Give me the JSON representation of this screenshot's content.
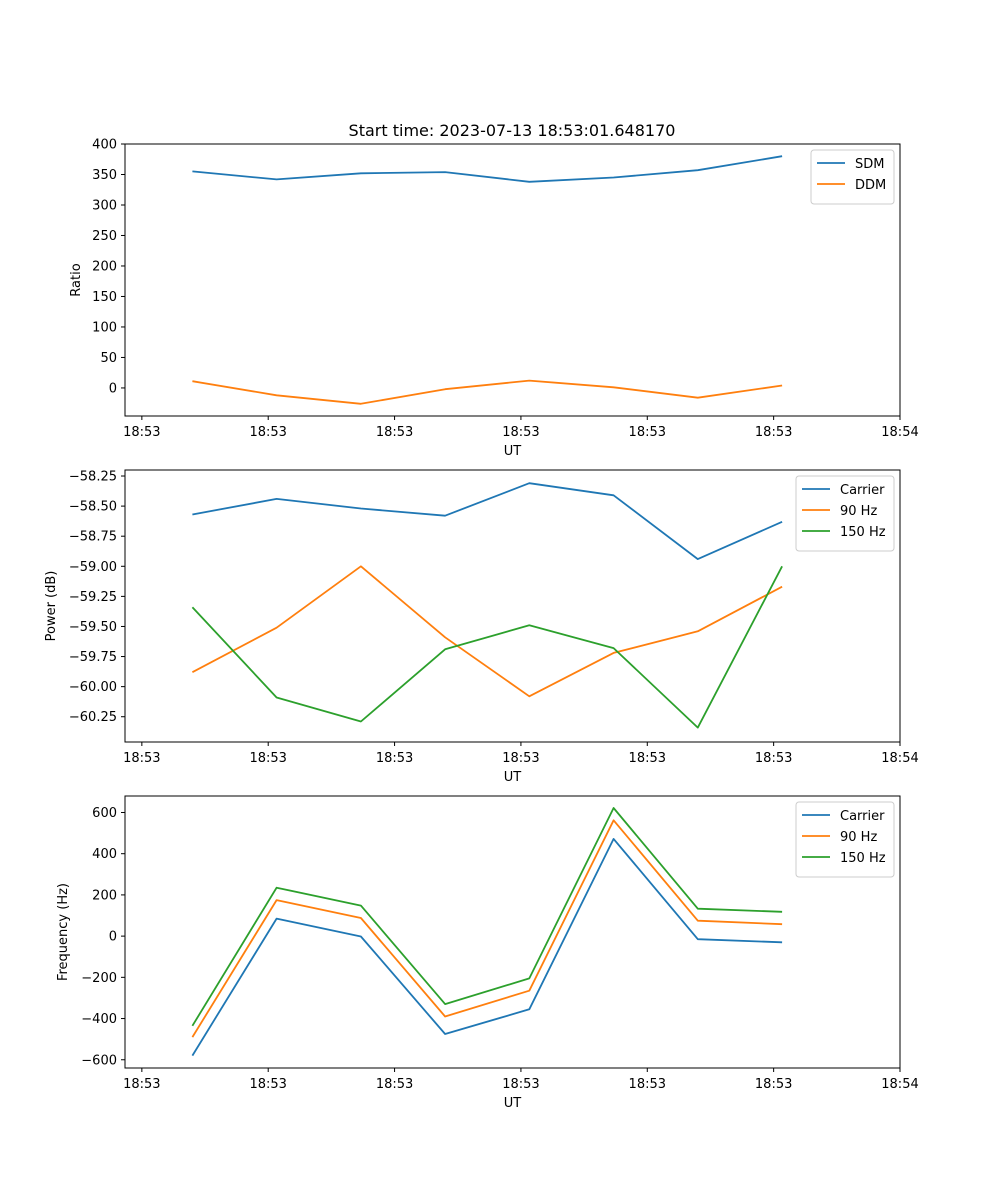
{
  "figure_title": "Start time: 2023-07-13 18:53:01.648170",
  "colors": {
    "blue": "#1f77b4",
    "orange": "#ff7f0e",
    "green": "#2ca02c"
  },
  "chart_data": [
    {
      "type": "line",
      "title": "Start time: 2023-07-13 18:53:01.648170",
      "xlabel": "UT",
      "ylabel": "Ratio",
      "x": [
        1,
        2,
        3,
        4,
        5,
        6,
        7,
        8
      ],
      "xlim": [
        0.2,
        9.4
      ],
      "xticks": [
        0.4,
        1.9,
        3.4,
        4.9,
        6.4,
        7.9,
        9.4
      ],
      "xtick_labels": [
        "18:53",
        "18:53",
        "18:53",
        "18:53",
        "18:53",
        "18:53",
        "18:54"
      ],
      "ylim": [
        -46,
        400
      ],
      "yticks": [
        0,
        50,
        100,
        150,
        200,
        250,
        300,
        350,
        400
      ],
      "ytick_labels": [
        "0",
        "50",
        "100",
        "150",
        "200",
        "250",
        "300",
        "350",
        "400"
      ],
      "legend": "top-right",
      "grid": false,
      "series": [
        {
          "name": "SDM",
          "color": "#1f77b4",
          "values": [
            355,
            342,
            352,
            354,
            338,
            345,
            357,
            380
          ]
        },
        {
          "name": "DDM",
          "color": "#ff7f0e",
          "values": [
            11,
            -12,
            -26,
            -2,
            12,
            1,
            -16,
            4
          ]
        }
      ]
    },
    {
      "type": "line",
      "title": "",
      "xlabel": "UT",
      "ylabel": "Power (dB)",
      "x": [
        1,
        2,
        3,
        4,
        5,
        6,
        7,
        8
      ],
      "xlim": [
        0.2,
        9.4
      ],
      "xticks": [
        0.4,
        1.9,
        3.4,
        4.9,
        6.4,
        7.9,
        9.4
      ],
      "xtick_labels": [
        "18:53",
        "18:53",
        "18:53",
        "18:53",
        "18:53",
        "18:53",
        "18:54"
      ],
      "ylim": [
        -60.46,
        -58.2
      ],
      "yticks": [
        -58.25,
        -58.5,
        -58.75,
        -59.0,
        -59.25,
        -59.5,
        -59.75,
        -60.0,
        -60.25
      ],
      "ytick_labels": [
        "−58.25",
        "−58.50",
        "−58.75",
        "−59.00",
        "−59.25",
        "−59.50",
        "−59.75",
        "−60.00",
        "−60.25"
      ],
      "legend": "top-right",
      "grid": false,
      "series": [
        {
          "name": "Carrier",
          "color": "#1f77b4",
          "values": [
            -58.57,
            -58.44,
            -58.52,
            -58.58,
            -58.31,
            -58.41,
            -58.94,
            -58.63
          ]
        },
        {
          "name": "90 Hz",
          "color": "#ff7f0e",
          "values": [
            -59.88,
            -59.51,
            -59.0,
            -59.59,
            -60.08,
            -59.72,
            -59.54,
            -59.17
          ]
        },
        {
          "name": "150 Hz",
          "color": "#2ca02c",
          "values": [
            -59.34,
            -60.09,
            -60.29,
            -59.69,
            -59.49,
            -59.68,
            -60.34,
            -59.0
          ]
        }
      ]
    },
    {
      "type": "line",
      "title": "",
      "xlabel": "UT",
      "ylabel": "Frequency (Hz)",
      "x": [
        1,
        2,
        3,
        4,
        5,
        6,
        7,
        8
      ],
      "xlim": [
        0.2,
        9.4
      ],
      "xticks": [
        0.4,
        1.9,
        3.4,
        4.9,
        6.4,
        7.9,
        9.4
      ],
      "xtick_labels": [
        "18:53",
        "18:53",
        "18:53",
        "18:53",
        "18:53",
        "18:53",
        "18:54"
      ],
      "ylim": [
        -640,
        680
      ],
      "yticks": [
        -600,
        -400,
        -200,
        0,
        200,
        400,
        600
      ],
      "ytick_labels": [
        "−600",
        "−400",
        "−200",
        "0",
        "200",
        "400",
        "600"
      ],
      "legend": "top-right",
      "grid": false,
      "series": [
        {
          "name": "Carrier",
          "color": "#1f77b4",
          "values": [
            -580,
            85,
            -2,
            -475,
            -355,
            472,
            -15,
            -30
          ]
        },
        {
          "name": "90 Hz",
          "color": "#ff7f0e",
          "values": [
            -490,
            175,
            88,
            -390,
            -265,
            562,
            75,
            58
          ]
        },
        {
          "name": "150 Hz",
          "color": "#2ca02c",
          "values": [
            -435,
            235,
            148,
            -330,
            -205,
            622,
            133,
            118
          ]
        }
      ]
    }
  ]
}
